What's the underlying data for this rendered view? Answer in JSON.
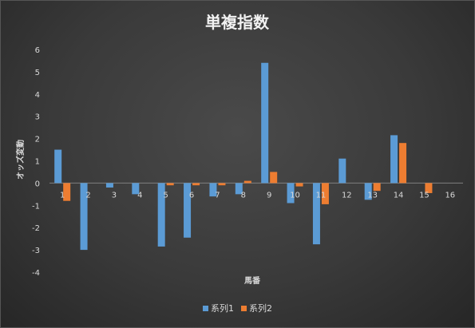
{
  "chart_data": {
    "type": "bar",
    "title": "単複指数",
    "xlabel": "馬番",
    "ylabel": "オッズ変動",
    "categories": [
      "1",
      "2",
      "3",
      "4",
      "5",
      "6",
      "7",
      "8",
      "9",
      "10",
      "11",
      "12",
      "13",
      "14",
      "15",
      "16"
    ],
    "ylim": [
      -4,
      6
    ],
    "yticks": [
      6,
      5,
      4,
      3,
      2,
      1,
      0,
      -1,
      -2,
      -3,
      -4
    ],
    "grid": false,
    "legend_position": "bottom",
    "series": [
      {
        "name": "系列1",
        "color": "#5b9bd5",
        "values": [
          1.5,
          -3.0,
          -0.2,
          -0.5,
          -2.85,
          -2.45,
          -0.6,
          -0.5,
          5.4,
          -0.9,
          -2.75,
          1.1,
          -0.75,
          2.15,
          0,
          0
        ]
      },
      {
        "name": "系列2",
        "color": "#ed7d31",
        "values": [
          -0.8,
          0,
          0,
          0,
          -0.1,
          -0.1,
          -0.1,
          0.1,
          0.5,
          -0.15,
          -0.95,
          0,
          -0.35,
          1.8,
          -0.45,
          0
        ]
      }
    ]
  }
}
